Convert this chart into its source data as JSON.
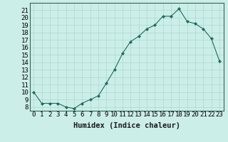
{
  "x": [
    0,
    1,
    2,
    3,
    4,
    5,
    6,
    7,
    8,
    9,
    10,
    11,
    12,
    13,
    14,
    15,
    16,
    17,
    18,
    19,
    20,
    21,
    22,
    23
  ],
  "y": [
    10,
    8.5,
    8.5,
    8.5,
    8.0,
    7.8,
    8.5,
    9.0,
    9.5,
    11.2,
    13.0,
    15.2,
    16.8,
    17.5,
    18.5,
    19.0,
    20.2,
    20.2,
    21.2,
    19.5,
    19.2,
    18.5,
    17.2,
    14.2
  ],
  "xlabel": "Humidex (Indice chaleur)",
  "xlim": [
    -0.5,
    23.5
  ],
  "ylim": [
    7.5,
    22.0
  ],
  "yticks": [
    8,
    9,
    10,
    11,
    12,
    13,
    14,
    15,
    16,
    17,
    18,
    19,
    20,
    21
  ],
  "xticks": [
    0,
    1,
    2,
    3,
    4,
    5,
    6,
    7,
    8,
    9,
    10,
    11,
    12,
    13,
    14,
    15,
    16,
    17,
    18,
    19,
    20,
    21,
    22,
    23
  ],
  "line_color": "#1e6b5e",
  "marker": "D",
  "marker_size": 2.0,
  "bg_color": "#cceee8",
  "grid_color": "#aad8d2",
  "xlabel_fontsize": 7.5,
  "tick_fontsize": 6.5,
  "spine_color": "#336655"
}
